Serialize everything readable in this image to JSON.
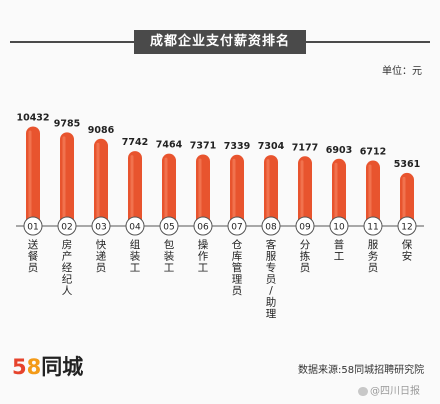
{
  "title": "成都企业支付薪资排名",
  "unit_label": "单位：元",
  "chart_data": {
    "type": "bar",
    "title": "成都企业支付薪资排名",
    "unit": "元",
    "ranks": [
      "01",
      "02",
      "03",
      "04",
      "05",
      "06",
      "07",
      "08",
      "09",
      "10",
      "11",
      "12"
    ],
    "categories": [
      "送餐员",
      "房产经纪人",
      "快递员",
      "组装工",
      "包装工",
      "操作工",
      "仓库管理员",
      "客服专员/助理",
      "分拣员",
      "普工",
      "服务员",
      "保安"
    ],
    "values": [
      10432,
      9785,
      9086,
      7742,
      7464,
      7371,
      7339,
      7304,
      7177,
      6903,
      6712,
      5361
    ],
    "ylim": [
      0,
      11000
    ],
    "colors": {
      "bar": "#e8542e",
      "bar_highlight": "#f78a6a",
      "rank_text": "#222222"
    }
  },
  "footer": {
    "logo_number_5": "5",
    "logo_number_8": "8",
    "logo_text": "同城",
    "source": "数据来源:58同城招聘研究院",
    "watermark": "@四川日报"
  }
}
